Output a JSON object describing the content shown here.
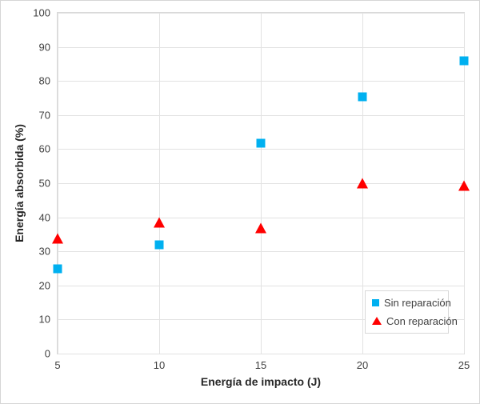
{
  "figure": {
    "background": "#ffffff",
    "outer_border_color": "#d6d6d6",
    "plot_border_color": "#d9d9d9"
  },
  "chart_data": {
    "type": "scatter",
    "title": "",
    "xlabel": "Energía de impacto (J)",
    "ylabel": "Energía absorbida (%)",
    "x": [
      5,
      10,
      15,
      20,
      25
    ],
    "xlim": [
      5,
      25
    ],
    "ylim": [
      0,
      100
    ],
    "xticks": [
      5,
      10,
      15,
      20,
      25
    ],
    "yticks": [
      0,
      10,
      20,
      30,
      40,
      50,
      60,
      70,
      80,
      90,
      100
    ],
    "grid": true,
    "gridline_color": "#e2e2e2",
    "legend_position": "inside-bottom-right",
    "series": [
      {
        "name": "Sin reparación",
        "marker": "square",
        "color": "#00b0f0",
        "values": [
          25,
          32,
          61.7,
          75.4,
          85.8
        ]
      },
      {
        "name": "Con reparación",
        "marker": "triangle",
        "color": "#ff0000",
        "values": [
          33.8,
          38.5,
          36.9,
          49.9,
          49.3
        ]
      }
    ]
  }
}
